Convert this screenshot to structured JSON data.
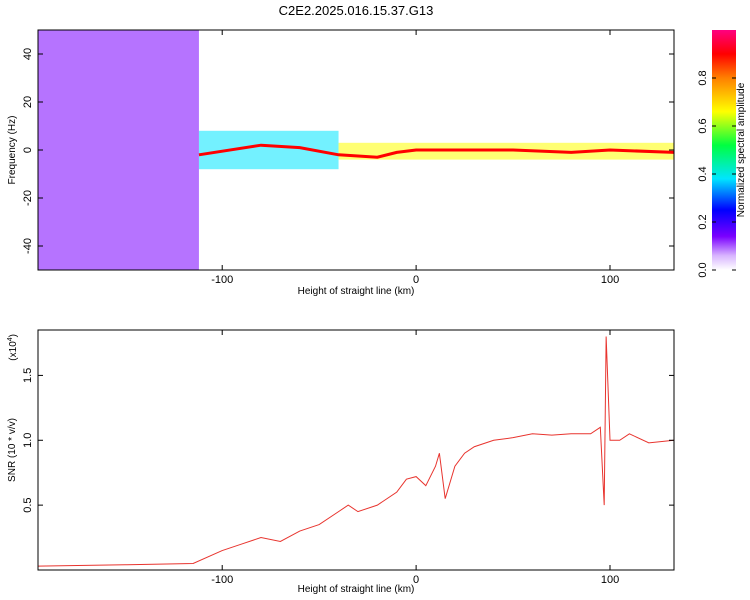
{
  "title": "C2E2.2025.016.15.37.G13",
  "chart_data": [
    {
      "type": "heatmap",
      "xlabel": "Height of straight line (km)",
      "ylabel": "Frequency (Hz)",
      "xlim": [
        -195,
        133
      ],
      "ylim": [
        -50,
        50
      ],
      "xticks": [
        -100,
        0,
        100
      ],
      "xtick_labels": [
        "-100",
        "0",
        "100"
      ],
      "yticks": [
        40,
        20,
        0,
        -20,
        -40
      ],
      "ytick_labels": [
        "40",
        "20",
        "0",
        "-20",
        "-40"
      ],
      "colorbar": {
        "label": "Normalized spectral amplitude",
        "range": [
          0,
          1
        ],
        "ticks": [
          0.0,
          0.2,
          0.4,
          0.6,
          0.8
        ],
        "tick_labels": [
          "0.0",
          "0.2",
          "0.4",
          "0.6",
          "0.8"
        ],
        "colors": [
          "#ffffff",
          "#7a00ff",
          "#0000ff",
          "#00e5ff",
          "#00ff00",
          "#ffff00",
          "#ff8000",
          "#ff0000",
          "#ff0080"
        ]
      },
      "regions": [
        {
          "x": [
            -195,
            -112
          ],
          "freq": [
            -50,
            50
          ],
          "amplitude": 0.12
        },
        {
          "x": [
            -112,
            -40
          ],
          "freq": [
            -8,
            8
          ],
          "amplitude": 0.35
        },
        {
          "x": [
            -40,
            133
          ],
          "freq": [
            -4,
            3
          ],
          "amplitude": 0.6
        }
      ],
      "ridge": {
        "x": [
          -112,
          -80,
          -60,
          -40,
          -20,
          -10,
          0,
          20,
          50,
          80,
          100,
          133
        ],
        "freq": [
          -2,
          2,
          1,
          -2,
          -3,
          -1,
          0,
          0,
          0,
          -1,
          0,
          -1
        ]
      }
    },
    {
      "type": "line",
      "xlabel": "Height of straight line (km)",
      "ylabel": "SNR (10 * v/v)",
      "multiplier_label": "(x10",
      "multiplier_exp": "4",
      "multiplier_close": ")",
      "xlim": [
        -195,
        133
      ],
      "ylim": [
        0,
        1.85
      ],
      "xticks": [
        -100,
        0,
        100
      ],
      "xtick_labels": [
        "-100",
        "0",
        "100"
      ],
      "yticks": [
        0.5,
        1.0,
        1.5
      ],
      "ytick_labels": [
        "0.5",
        "1.0",
        "1.5"
      ],
      "color": "#e8342e",
      "series": [
        {
          "x": [
            -195,
            -150,
            -115,
            -100,
            -90,
            -80,
            -70,
            -60,
            -50,
            -40,
            -35,
            -30,
            -20,
            -10,
            -5,
            0,
            5,
            10,
            12,
            15,
            20,
            25,
            30,
            40,
            50,
            60,
            70,
            80,
            90,
            95,
            97,
            98,
            100,
            105,
            110,
            120,
            133
          ],
          "y": [
            0.03,
            0.04,
            0.05,
            0.15,
            0.2,
            0.25,
            0.22,
            0.3,
            0.35,
            0.45,
            0.5,
            0.45,
            0.5,
            0.6,
            0.7,
            0.72,
            0.65,
            0.8,
            0.9,
            0.55,
            0.8,
            0.9,
            0.95,
            1.0,
            1.02,
            1.05,
            1.04,
            1.05,
            1.05,
            1.1,
            0.5,
            1.8,
            1.0,
            1.0,
            1.05,
            0.98,
            1.0
          ]
        }
      ]
    }
  ]
}
